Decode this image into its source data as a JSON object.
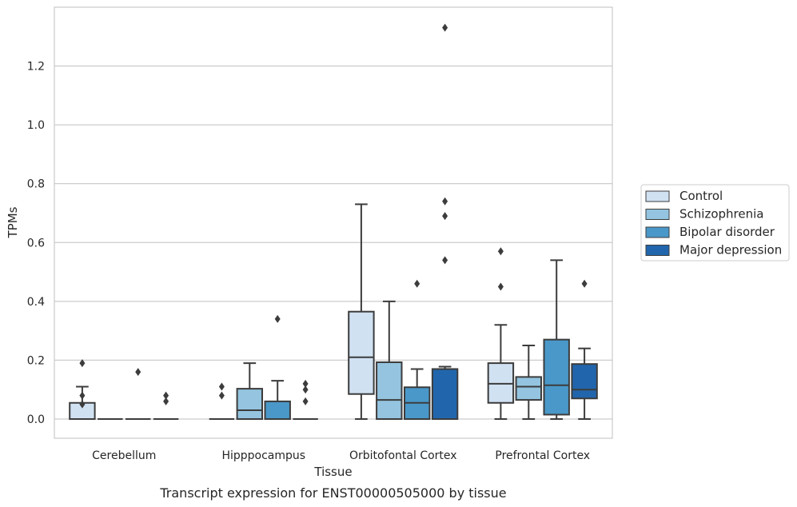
{
  "chart_data": {
    "type": "box",
    "xlabel": "Tissue",
    "ylabel": "TPMs",
    "caption": "Transcript expression for ENST00000505000 by tissue",
    "ylim": [
      -0.065,
      1.4
    ],
    "yticks": [
      "0.0",
      "0.2",
      "0.4",
      "0.6",
      "0.8",
      "1.0",
      "1.2"
    ],
    "grid": "horizontal",
    "legend_position": "right",
    "categories": [
      "Cerebellum",
      "Hipppocampus",
      "Orbitofontal Cortex",
      "Prefrontal Cortex"
    ],
    "series": [
      {
        "name": "Control",
        "color": "#d0e1f2",
        "boxes": [
          {
            "min": 0.0,
            "q1": 0.0,
            "median": 0.0,
            "q3": 0.055,
            "max": 0.11,
            "outliers": [
              0.19,
              0.08,
              0.05
            ]
          },
          {
            "min": 0.0,
            "q1": 0.0,
            "median": 0.0,
            "q3": 0.0,
            "max": 0.0,
            "outliers": [
              0.11,
              0.08
            ]
          },
          {
            "min": 0.0,
            "q1": 0.085,
            "median": 0.21,
            "q3": 0.365,
            "max": 0.73,
            "outliers": []
          },
          {
            "min": 0.0,
            "q1": 0.055,
            "median": 0.12,
            "q3": 0.19,
            "max": 0.32,
            "outliers": [
              0.57,
              0.45
            ]
          }
        ]
      },
      {
        "name": "Schizophrenia",
        "color": "#94c4df",
        "boxes": [
          {
            "min": 0.0,
            "q1": 0.0,
            "median": 0.0,
            "q3": 0.0,
            "max": 0.0,
            "outliers": []
          },
          {
            "min": 0.0,
            "q1": 0.0,
            "median": 0.03,
            "q3": 0.103,
            "max": 0.19,
            "outliers": []
          },
          {
            "min": 0.0,
            "q1": 0.0,
            "median": 0.065,
            "q3": 0.193,
            "max": 0.4,
            "outliers": []
          },
          {
            "min": 0.0,
            "q1": 0.065,
            "median": 0.11,
            "q3": 0.143,
            "max": 0.25,
            "outliers": []
          }
        ]
      },
      {
        "name": "Bipolar disorder",
        "color": "#4a98c9",
        "boxes": [
          {
            "min": 0.0,
            "q1": 0.0,
            "median": 0.0,
            "q3": 0.0,
            "max": 0.0,
            "outliers": [
              0.16
            ]
          },
          {
            "min": 0.0,
            "q1": 0.0,
            "median": 0.0,
            "q3": 0.06,
            "max": 0.13,
            "outliers": [
              0.34
            ]
          },
          {
            "min": 0.0,
            "q1": 0.0,
            "median": 0.055,
            "q3": 0.108,
            "max": 0.17,
            "outliers": [
              0.46
            ]
          },
          {
            "min": 0.0,
            "q1": 0.015,
            "median": 0.115,
            "q3": 0.27,
            "max": 0.54,
            "outliers": []
          }
        ]
      },
      {
        "name": "Major depression",
        "color": "#2166ac",
        "boxes": [
          {
            "min": 0.0,
            "q1": 0.0,
            "median": 0.0,
            "q3": 0.0,
            "max": 0.0,
            "outliers": [
              0.08,
              0.06
            ]
          },
          {
            "min": 0.0,
            "q1": 0.0,
            "median": 0.0,
            "q3": 0.0,
            "max": 0.0,
            "outliers": [
              0.12,
              0.1,
              0.06
            ]
          },
          {
            "min": 0.0,
            "q1": 0.0,
            "median": 0.17,
            "q3": 0.17,
            "max": 0.178,
            "outliers": [
              1.33,
              0.74,
              0.69,
              0.54
            ]
          },
          {
            "min": 0.0,
            "q1": 0.07,
            "median": 0.1,
            "q3": 0.187,
            "max": 0.24,
            "outliers": [
              0.46
            ]
          }
        ]
      }
    ]
  }
}
